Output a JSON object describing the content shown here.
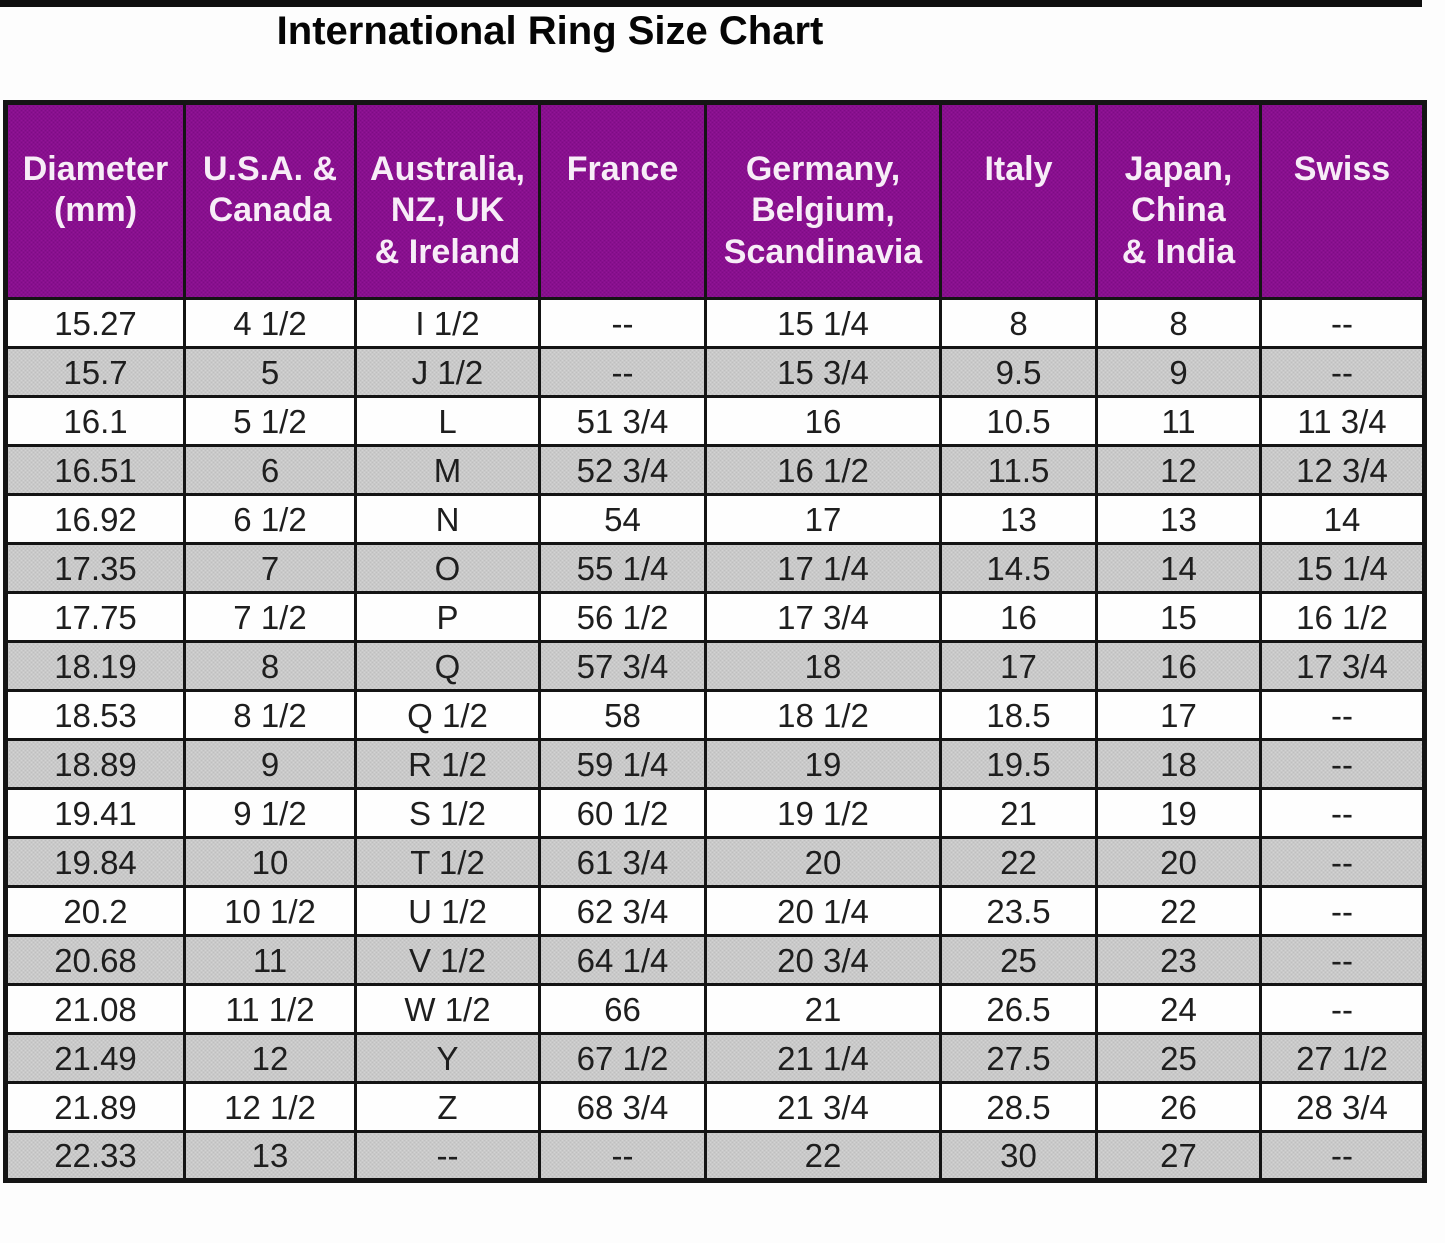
{
  "title": "International Ring Size Chart",
  "colors": {
    "header_bg": "#8B0F92",
    "header_text": "#F7EDF7",
    "stripe_bg": "#C9C9C9",
    "row_bg": "#FEFEFE",
    "grid_border": "#141414",
    "title_color": "#050505"
  },
  "chart_data": {
    "type": "table",
    "title": "International Ring Size Chart",
    "columns": [
      "Diameter\n(mm)",
      "U.S.A. &\nCanada",
      "Australia,\nNZ, UK\n& Ireland",
      "France",
      "Germany,\nBelgium,\nScandinavia",
      "Italy",
      "Japan,\nChina\n& India",
      "Swiss"
    ],
    "rows": [
      [
        "15.27",
        "4 1/2",
        "I 1/2",
        "--",
        "15 1/4",
        "8",
        "8",
        "--"
      ],
      [
        "15.7",
        "5",
        "J 1/2",
        "--",
        "15 3/4",
        "9.5",
        "9",
        "--"
      ],
      [
        "16.1",
        "5 1/2",
        "L",
        "51 3/4",
        "16",
        "10.5",
        "11",
        "11 3/4"
      ],
      [
        "16.51",
        "6",
        "M",
        "52 3/4",
        "16 1/2",
        "11.5",
        "12",
        "12 3/4"
      ],
      [
        "16.92",
        "6 1/2",
        "N",
        "54",
        "17",
        "13",
        "13",
        "14"
      ],
      [
        "17.35",
        "7",
        "O",
        "55 1/4",
        "17 1/4",
        "14.5",
        "14",
        "15 1/4"
      ],
      [
        "17.75",
        "7 1/2",
        "P",
        "56 1/2",
        "17 3/4",
        "16",
        "15",
        "16 1/2"
      ],
      [
        "18.19",
        "8",
        "Q",
        "57 3/4",
        "18",
        "17",
        "16",
        "17 3/4"
      ],
      [
        "18.53",
        "8 1/2",
        "Q 1/2",
        "58",
        "18 1/2",
        "18.5",
        "17",
        "--"
      ],
      [
        "18.89",
        "9",
        "R 1/2",
        "59 1/4",
        "19",
        "19.5",
        "18",
        "--"
      ],
      [
        "19.41",
        "9 1/2",
        "S 1/2",
        "60 1/2",
        "19 1/2",
        "21",
        "19",
        "--"
      ],
      [
        "19.84",
        "10",
        "T 1/2",
        "61 3/4",
        "20",
        "22",
        "20",
        "--"
      ],
      [
        "20.2",
        "10 1/2",
        "U 1/2",
        "62 3/4",
        "20 1/4",
        "23.5",
        "22",
        "--"
      ],
      [
        "20.68",
        "11",
        "V 1/2",
        "64 1/4",
        "20 3/4",
        "25",
        "23",
        "--"
      ],
      [
        "21.08",
        "11 1/2",
        "W 1/2",
        "66",
        "21",
        "26.5",
        "24",
        "--"
      ],
      [
        "21.49",
        "12",
        "Y",
        "67 1/2",
        "21 1/4",
        "27.5",
        "25",
        "27 1/2"
      ],
      [
        "21.89",
        "12 1/2",
        "Z",
        "68 3/4",
        "21 3/4",
        "28.5",
        "26",
        "28 3/4"
      ],
      [
        "22.33",
        "13",
        "--",
        "--",
        "22",
        "30",
        "27",
        "--"
      ]
    ]
  }
}
